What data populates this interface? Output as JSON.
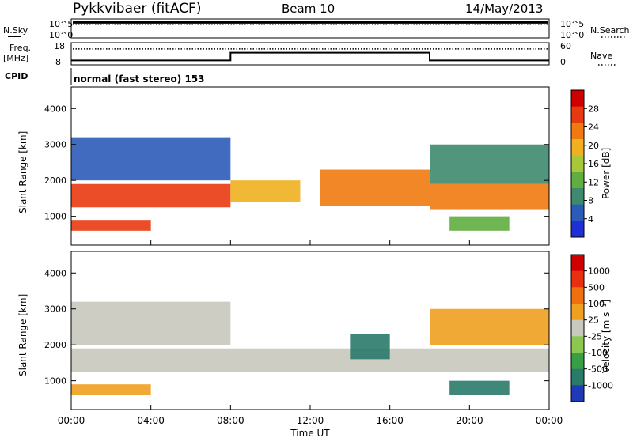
{
  "header": {
    "station": "Pykkvibaer (fitACF)",
    "beam": "Beam 10",
    "date": "14/May/2013"
  },
  "noise_panel": {
    "left_label": "N.Sky",
    "left_ticks": [
      "10^5",
      "10^0"
    ],
    "right_ticks": [
      "10^5",
      "10^0"
    ],
    "right_label": "N.Search",
    "sky_level": 0.82,
    "search_level": 0.7
  },
  "freq_panel": {
    "left_label_1": "Freq.",
    "left_label_2": "[MHz]",
    "left_ticks": [
      "18",
      "8"
    ],
    "right_ticks": [
      "60",
      "0"
    ],
    "right_label": "Nave",
    "freq_segments": [
      {
        "from_h": 0,
        "to_h": 8,
        "value": 0.2
      },
      {
        "from_h": 8,
        "to_h": 18,
        "value": 0.55
      },
      {
        "from_h": 18,
        "to_h": 24,
        "value": 0.2
      }
    ],
    "nave_level": 0.72
  },
  "cpid": {
    "label": "CPID",
    "text": "normal (fast stereo) 153"
  },
  "chart_data": [
    {
      "type": "heatmap",
      "name": "power",
      "ylabel": "Slant Range [km]",
      "yticks": [
        1000,
        2000,
        3000,
        4000
      ],
      "ylim": [
        200,
        4600
      ],
      "xlim_hours": [
        0,
        24
      ],
      "colorbar": {
        "label": "Power [dB]",
        "ticks": [
          "28",
          "24",
          "20",
          "16",
          "12",
          "8",
          "4"
        ],
        "colors": [
          "#1f2fd6",
          "#2b5bb8",
          "#3d8a6e",
          "#5fae3f",
          "#a8c83a",
          "#f0b020",
          "#f07a10",
          "#e83a10",
          "#d00000"
        ]
      },
      "bands": [
        {
          "start_h": 0.0,
          "end_h": 8.0,
          "low": 1250,
          "high": 1900,
          "level": 7
        },
        {
          "start_h": 0.0,
          "end_h": 4.0,
          "low": 600,
          "high": 900,
          "level": 7
        },
        {
          "start_h": 8.0,
          "end_h": 11.5,
          "low": 1400,
          "high": 2000,
          "level": 5
        },
        {
          "start_h": 12.5,
          "end_h": 18.0,
          "low": 1300,
          "high": 2300,
          "level": 6
        },
        {
          "start_h": 18.0,
          "end_h": 24.0,
          "low": 1200,
          "high": 1900,
          "level": 6
        },
        {
          "start_h": 0.0,
          "end_h": 8.0,
          "low": 2000,
          "high": 3200,
          "level": 1
        },
        {
          "start_h": 18.0,
          "end_h": 24.0,
          "low": 1900,
          "high": 3000,
          "level": 2
        },
        {
          "start_h": 19.0,
          "end_h": 22.0,
          "low": 600,
          "high": 1000,
          "level": 3
        }
      ]
    },
    {
      "type": "heatmap",
      "name": "velocity",
      "ylabel": "Slant Range [km]",
      "yticks": [
        1000,
        2000,
        3000,
        4000
      ],
      "ylim": [
        200,
        4600
      ],
      "xlim_hours": [
        0,
        24
      ],
      "xticks": [
        "00:00",
        "04:00",
        "08:00",
        "12:00",
        "16:00",
        "20:00",
        "00:00"
      ],
      "xlabel": "Time UT",
      "colorbar": {
        "label": "Velocity [m s⁻¹]",
        "ticks": [
          "1000",
          "500",
          "100",
          "25",
          "-25",
          "-100",
          "-500",
          "-1000"
        ],
        "colors": [
          "#1f3ab8",
          "#2a7a6a",
          "#38a044",
          "#8cc850",
          "#c8c8be",
          "#f0a020",
          "#f07010",
          "#e83010",
          "#d00000"
        ]
      },
      "bands": [
        {
          "start_h": 0.0,
          "end_h": 24.0,
          "low": 1250,
          "high": 1900,
          "level": 4
        },
        {
          "start_h": 0.0,
          "end_h": 4.0,
          "low": 600,
          "high": 900,
          "level": 5
        },
        {
          "start_h": 14.0,
          "end_h": 16.0,
          "low": 1600,
          "high": 2300,
          "level": 1
        },
        {
          "start_h": 0.0,
          "end_h": 8.0,
          "low": 2000,
          "high": 3200,
          "level": 4
        },
        {
          "start_h": 18.0,
          "end_h": 24.0,
          "low": 2000,
          "high": 3000,
          "level": 5
        },
        {
          "start_h": 19.0,
          "end_h": 22.0,
          "low": 600,
          "high": 1000,
          "level": 1
        }
      ]
    }
  ]
}
